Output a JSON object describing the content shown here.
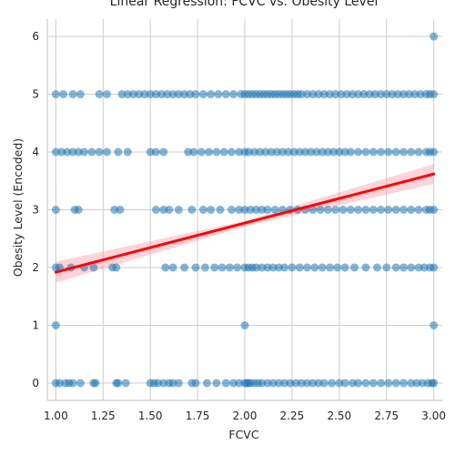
{
  "chart_data": {
    "type": "scatter",
    "title": "Linear Regression: FCVC vs. Obesity Level",
    "xlabel": "FCVC",
    "ylabel": "Obesity Level (Encoded)",
    "xlim": [
      0.955,
      3.045
    ],
    "ylim": [
      -0.3,
      6.3
    ],
    "xticks": [
      1.0,
      1.25,
      1.5,
      1.75,
      2.0,
      2.25,
      2.5,
      2.75,
      3.0
    ],
    "xtick_labels": [
      "1.00",
      "1.25",
      "1.50",
      "1.75",
      "2.00",
      "2.25",
      "2.50",
      "2.75",
      "3.00"
    ],
    "yticks": [
      0,
      1,
      2,
      3,
      4,
      5,
      6
    ],
    "ytick_labels": [
      "0",
      "1",
      "2",
      "3",
      "4",
      "5",
      "6"
    ],
    "grid": true,
    "point_color": "#1f77b4",
    "point_alpha": 0.55,
    "regression_line": {
      "color": "#ff0000",
      "x": [
        1.0,
        3.0
      ],
      "y": [
        1.92,
        3.62
      ]
    },
    "confidence_band": {
      "color": "#ff9da7",
      "x": [
        1.0,
        2.0,
        3.0
      ],
      "upper": [
        2.1,
        2.81,
        3.79
      ],
      "lower": [
        1.74,
        2.71,
        3.45
      ]
    },
    "points": [
      [
        1.0,
        0
      ],
      [
        1.02,
        0
      ],
      [
        1.05,
        0
      ],
      [
        1.07,
        0
      ],
      [
        1.09,
        0
      ],
      [
        1.13,
        0
      ],
      [
        1.2,
        0
      ],
      [
        1.21,
        0
      ],
      [
        1.32,
        0
      ],
      [
        1.33,
        0
      ],
      [
        1.37,
        0
      ],
      [
        1.5,
        0
      ],
      [
        1.52,
        0
      ],
      [
        1.54,
        0
      ],
      [
        1.57,
        0
      ],
      [
        1.6,
        0
      ],
      [
        1.62,
        0
      ],
      [
        1.65,
        0
      ],
      [
        1.72,
        0
      ],
      [
        1.74,
        0
      ],
      [
        1.8,
        0
      ],
      [
        1.85,
        0
      ],
      [
        1.9,
        0
      ],
      [
        1.94,
        0
      ],
      [
        1.97,
        0
      ],
      [
        2.0,
        0
      ],
      [
        2.01,
        0
      ],
      [
        2.02,
        0
      ],
      [
        2.03,
        0
      ],
      [
        2.05,
        0
      ],
      [
        2.07,
        0
      ],
      [
        2.09,
        0
      ],
      [
        2.12,
        0
      ],
      [
        2.15,
        0
      ],
      [
        2.18,
        0
      ],
      [
        2.21,
        0
      ],
      [
        2.24,
        0
      ],
      [
        2.27,
        0
      ],
      [
        2.3,
        0
      ],
      [
        2.33,
        0
      ],
      [
        2.36,
        0
      ],
      [
        2.39,
        0
      ],
      [
        2.42,
        0
      ],
      [
        2.46,
        0
      ],
      [
        2.5,
        0
      ],
      [
        2.53,
        0
      ],
      [
        2.57,
        0
      ],
      [
        2.6,
        0
      ],
      [
        2.64,
        0
      ],
      [
        2.68,
        0
      ],
      [
        2.72,
        0
      ],
      [
        2.76,
        0
      ],
      [
        2.8,
        0
      ],
      [
        2.84,
        0
      ],
      [
        2.88,
        0
      ],
      [
        2.91,
        0
      ],
      [
        2.94,
        0
      ],
      [
        2.97,
        0
      ],
      [
        2.99,
        0
      ],
      [
        3.0,
        0
      ],
      [
        1.0,
        1
      ],
      [
        2.0,
        1
      ],
      [
        3.0,
        1
      ],
      [
        1.0,
        2
      ],
      [
        1.02,
        2
      ],
      [
        1.08,
        2
      ],
      [
        1.15,
        2
      ],
      [
        1.2,
        2
      ],
      [
        1.3,
        2
      ],
      [
        1.32,
        2
      ],
      [
        1.58,
        2
      ],
      [
        1.62,
        2
      ],
      [
        1.68,
        2
      ],
      [
        1.74,
        2
      ],
      [
        1.79,
        2
      ],
      [
        1.84,
        2
      ],
      [
        1.88,
        2
      ],
      [
        1.92,
        2
      ],
      [
        1.96,
        2
      ],
      [
        2.0,
        2
      ],
      [
        2.02,
        2
      ],
      [
        2.04,
        2
      ],
      [
        2.06,
        2
      ],
      [
        2.09,
        2
      ],
      [
        2.12,
        2
      ],
      [
        2.15,
        2
      ],
      [
        2.18,
        2
      ],
      [
        2.21,
        2
      ],
      [
        2.25,
        2
      ],
      [
        2.29,
        2
      ],
      [
        2.33,
        2
      ],
      [
        2.37,
        2
      ],
      [
        2.41,
        2
      ],
      [
        2.45,
        2
      ],
      [
        2.49,
        2
      ],
      [
        2.53,
        2
      ],
      [
        2.58,
        2
      ],
      [
        2.64,
        2
      ],
      [
        2.7,
        2
      ],
      [
        2.75,
        2
      ],
      [
        2.8,
        2
      ],
      [
        2.84,
        2
      ],
      [
        2.88,
        2
      ],
      [
        2.92,
        2
      ],
      [
        2.95,
        2
      ],
      [
        2.98,
        2
      ],
      [
        3.0,
        2
      ],
      [
        1.0,
        3
      ],
      [
        1.1,
        3
      ],
      [
        1.12,
        3
      ],
      [
        1.31,
        3
      ],
      [
        1.34,
        3
      ],
      [
        1.53,
        3
      ],
      [
        1.57,
        3
      ],
      [
        1.6,
        3
      ],
      [
        1.65,
        3
      ],
      [
        1.72,
        3
      ],
      [
        1.78,
        3
      ],
      [
        1.82,
        3
      ],
      [
        1.87,
        3
      ],
      [
        1.93,
        3
      ],
      [
        1.97,
        3
      ],
      [
        2.0,
        3
      ],
      [
        2.03,
        3
      ],
      [
        2.06,
        3
      ],
      [
        2.09,
        3
      ],
      [
        2.12,
        3
      ],
      [
        2.16,
        3
      ],
      [
        2.2,
        3
      ],
      [
        2.24,
        3
      ],
      [
        2.28,
        3
      ],
      [
        2.32,
        3
      ],
      [
        2.36,
        3
      ],
      [
        2.4,
        3
      ],
      [
        2.44,
        3
      ],
      [
        2.48,
        3
      ],
      [
        2.52,
        3
      ],
      [
        2.56,
        3
      ],
      [
        2.6,
        3
      ],
      [
        2.64,
        3
      ],
      [
        2.68,
        3
      ],
      [
        2.72,
        3
      ],
      [
        2.76,
        3
      ],
      [
        2.8,
        3
      ],
      [
        2.84,
        3
      ],
      [
        2.88,
        3
      ],
      [
        2.92,
        3
      ],
      [
        2.96,
        3
      ],
      [
        2.98,
        3
      ],
      [
        3.0,
        3
      ],
      [
        1.0,
        4
      ],
      [
        1.03,
        4
      ],
      [
        1.06,
        4
      ],
      [
        1.09,
        4
      ],
      [
        1.12,
        4
      ],
      [
        1.15,
        4
      ],
      [
        1.19,
        4
      ],
      [
        1.23,
        4
      ],
      [
        1.27,
        4
      ],
      [
        1.33,
        4
      ],
      [
        1.38,
        4
      ],
      [
        1.5,
        4
      ],
      [
        1.53,
        4
      ],
      [
        1.57,
        4
      ],
      [
        1.7,
        4
      ],
      [
        1.73,
        4
      ],
      [
        1.77,
        4
      ],
      [
        1.81,
        4
      ],
      [
        1.85,
        4
      ],
      [
        1.89,
        4
      ],
      [
        1.93,
        4
      ],
      [
        1.97,
        4
      ],
      [
        2.0,
        4
      ],
      [
        2.02,
        4
      ],
      [
        2.05,
        4
      ],
      [
        2.08,
        4
      ],
      [
        2.11,
        4
      ],
      [
        2.14,
        4
      ],
      [
        2.17,
        4
      ],
      [
        2.2,
        4
      ],
      [
        2.23,
        4
      ],
      [
        2.26,
        4
      ],
      [
        2.29,
        4
      ],
      [
        2.32,
        4
      ],
      [
        2.35,
        4
      ],
      [
        2.38,
        4
      ],
      [
        2.41,
        4
      ],
      [
        2.44,
        4
      ],
      [
        2.47,
        4
      ],
      [
        2.5,
        4
      ],
      [
        2.53,
        4
      ],
      [
        2.56,
        4
      ],
      [
        2.6,
        4
      ],
      [
        2.64,
        4
      ],
      [
        2.68,
        4
      ],
      [
        2.72,
        4
      ],
      [
        2.76,
        4
      ],
      [
        2.8,
        4
      ],
      [
        2.84,
        4
      ],
      [
        2.88,
        4
      ],
      [
        2.92,
        4
      ],
      [
        2.96,
        4
      ],
      [
        2.98,
        4
      ],
      [
        3.0,
        4
      ],
      [
        1.0,
        5
      ],
      [
        1.04,
        5
      ],
      [
        1.09,
        5
      ],
      [
        1.13,
        5
      ],
      [
        1.23,
        5
      ],
      [
        1.27,
        5
      ],
      [
        1.35,
        5
      ],
      [
        1.38,
        5
      ],
      [
        1.41,
        5
      ],
      [
        1.44,
        5
      ],
      [
        1.47,
        5
      ],
      [
        1.5,
        5
      ],
      [
        1.53,
        5
      ],
      [
        1.56,
        5
      ],
      [
        1.59,
        5
      ],
      [
        1.62,
        5
      ],
      [
        1.65,
        5
      ],
      [
        1.68,
        5
      ],
      [
        1.71,
        5
      ],
      [
        1.74,
        5
      ],
      [
        1.78,
        5
      ],
      [
        1.82,
        5
      ],
      [
        1.86,
        5
      ],
      [
        1.9,
        5
      ],
      [
        1.94,
        5
      ],
      [
        1.98,
        5
      ],
      [
        2.0,
        5
      ],
      [
        2.02,
        5
      ],
      [
        2.04,
        5
      ],
      [
        2.06,
        5
      ],
      [
        2.08,
        5
      ],
      [
        2.1,
        5
      ],
      [
        2.12,
        5
      ],
      [
        2.14,
        5
      ],
      [
        2.16,
        5
      ],
      [
        2.18,
        5
      ],
      [
        2.2,
        5
      ],
      [
        2.22,
        5
      ],
      [
        2.24,
        5
      ],
      [
        2.26,
        5
      ],
      [
        2.28,
        5
      ],
      [
        2.3,
        5
      ],
      [
        2.33,
        5
      ],
      [
        2.36,
        5
      ],
      [
        2.39,
        5
      ],
      [
        2.42,
        5
      ],
      [
        2.45,
        5
      ],
      [
        2.48,
        5
      ],
      [
        2.51,
        5
      ],
      [
        2.54,
        5
      ],
      [
        2.57,
        5
      ],
      [
        2.6,
        5
      ],
      [
        2.63,
        5
      ],
      [
        2.66,
        5
      ],
      [
        2.69,
        5
      ],
      [
        2.72,
        5
      ],
      [
        2.75,
        5
      ],
      [
        2.78,
        5
      ],
      [
        2.81,
        5
      ],
      [
        2.84,
        5
      ],
      [
        2.87,
        5
      ],
      [
        2.9,
        5
      ],
      [
        2.93,
        5
      ],
      [
        2.96,
        5
      ],
      [
        2.98,
        5
      ],
      [
        3.0,
        5
      ],
      [
        3.0,
        6
      ]
    ]
  }
}
